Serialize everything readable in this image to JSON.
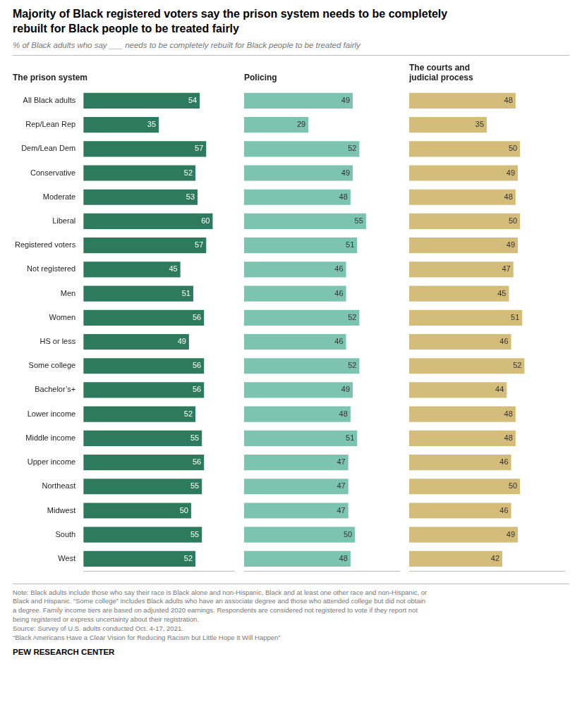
{
  "title": "Majority of Black registered voters say the prison system needs to be completely\nrebuilt for Black people to be treated fairly",
  "subtitle": "% of Black adults who say ___ needs to be completely rebuilt for Black people to be treated fairly",
  "annotations": [
    "Note: Black adults include those who say their race is Black alone and non-Hispanic, Black and at least one other race and non-Hispanic, or\nBlack and Hispanic. “Some college” includes Black adults who have an associate degree and those who attended college but did not obtain\na degree. Family income tiers are based on adjusted 2020 earnings. Respondents are considered not registered to vote if they report not\nbeing registered or express uncertainty about their registration.\nSource: Survey of U.S. adults conducted Oct. 4-17, 2021.\n“Black Americans Have a Clear Vision for Reducing Racism but Little Hope It Will Happen”",
    "PEW RESEARCH CENTER"
  ],
  "chart_data": [
    {
      "type": "bar",
      "orientation": "horizontal",
      "title": "The prison system",
      "categories": [
        "All Black adults",
        "Rep/Lean Rep",
        "Dem/Lean Dem",
        "Conservative",
        "Moderate",
        "Liberal",
        "Registered voters",
        "Not registered",
        "Men",
        "Women",
        "HS or less",
        "Some college",
        "Bachelor’s+",
        "Lower income",
        "Middle income",
        "Upper income",
        "Northeast",
        "Midwest",
        "South",
        "West"
      ],
      "values": [
        54,
        35,
        57,
        52,
        53,
        60,
        57,
        45,
        51,
        56,
        49,
        56,
        56,
        52,
        55,
        56,
        55,
        50,
        55,
        52
      ],
      "color": "#2d7a5f",
      "xlim": [
        0,
        70
      ],
      "grid": false,
      "data_labels": true,
      "tick_labels": "y"
    },
    {
      "type": "bar",
      "orientation": "horizontal",
      "title": "Policing",
      "categories": [
        "All Black adults",
        "Rep/Lean Rep",
        "Dem/Lean Dem",
        "Conservative",
        "Moderate",
        "Liberal",
        "Registered voters",
        "Not registered",
        "Men",
        "Women",
        "HS or less",
        "Some college",
        "Bachelor’s+",
        "Lower income",
        "Middle income",
        "Upper income",
        "Northeast",
        "Midwest",
        "South",
        "West"
      ],
      "values": [
        49,
        29,
        52,
        49,
        48,
        55,
        51,
        46,
        46,
        52,
        46,
        52,
        49,
        48,
        51,
        47,
        47,
        47,
        50,
        48
      ],
      "color": "#7dc4b0",
      "xlim": [
        0,
        70
      ],
      "grid": false,
      "data_labels": true,
      "tick_labels": false
    },
    {
      "type": "bar",
      "orientation": "horizontal",
      "title": "The courts and\njudicial process",
      "categories": [
        "All Black adults",
        "Rep/Lean Rep",
        "Dem/Lean Dem",
        "Conservative",
        "Moderate",
        "Liberal",
        "Registered voters",
        "Not registered",
        "Men",
        "Women",
        "HS or less",
        "Some college",
        "Bachelor’s+",
        "Lower income",
        "Middle income",
        "Upper income",
        "Northeast",
        "Midwest",
        "South",
        "West"
      ],
      "values": [
        48,
        35,
        50,
        49,
        48,
        50,
        49,
        47,
        45,
        51,
        46,
        52,
        44,
        48,
        48,
        46,
        50,
        46,
        49,
        42
      ],
      "color": "#d4bc7a",
      "xlim": [
        0,
        70
      ],
      "grid": false,
      "data_labels": true,
      "tick_labels": false
    }
  ]
}
